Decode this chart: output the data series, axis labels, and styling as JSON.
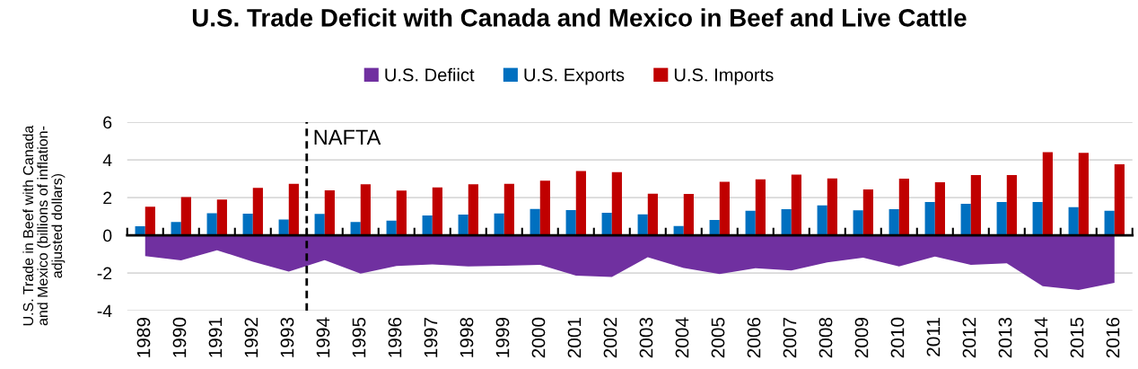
{
  "chart_data": {
    "type": "bar",
    "title": "U.S. Trade Deficit with Canada and Mexico in Beef and Live Cattle",
    "ylabel": "U.S. Trade in Beef with Canada\nand Mexico (billions of inflation-\nadjusted dollars)",
    "x": [
      1989,
      1990,
      1991,
      1992,
      1993,
      1994,
      1995,
      1996,
      1997,
      1998,
      1999,
      2000,
      2001,
      2002,
      2003,
      2004,
      2005,
      2006,
      2007,
      2008,
      2009,
      2010,
      2011,
      2012,
      2013,
      2014,
      2015,
      2016
    ],
    "series": [
      {
        "name": "U.S. Defiict",
        "type": "area",
        "color": "#7030a0",
        "values": [
          -1.11,
          -1.33,
          -0.79,
          -1.4,
          -1.92,
          -1.32,
          -2.03,
          -1.63,
          -1.54,
          -1.65,
          -1.62,
          -1.57,
          -2.14,
          -2.21,
          -1.16,
          -1.73,
          -2.06,
          -1.75,
          -1.87,
          -1.44,
          -1.19,
          -1.65,
          -1.13,
          -1.57,
          -1.49,
          -2.7,
          -2.9,
          -2.52
        ]
      },
      {
        "name": "U.S. Exports",
        "color": "#0070c0",
        "values": [
          0.48,
          0.71,
          1.17,
          1.14,
          0.84,
          1.13,
          0.71,
          0.78,
          1.05,
          1.1,
          1.16,
          1.4,
          1.33,
          1.19,
          1.11,
          0.49,
          0.81,
          1.3,
          1.38,
          1.59,
          1.32,
          1.38,
          1.76,
          1.67,
          1.76,
          1.76,
          1.49,
          1.3
        ]
      },
      {
        "name": "U.S. Imports",
        "color": "#c00000",
        "values": [
          1.52,
          2.03,
          1.9,
          2.52,
          2.73,
          2.38,
          2.71,
          2.37,
          2.54,
          2.7,
          2.73,
          2.9,
          3.41,
          3.35,
          2.21,
          2.19,
          2.83,
          2.97,
          3.22,
          3.02,
          2.43,
          3.0,
          2.81,
          3.19,
          3.19,
          4.41,
          4.37,
          3.76
        ]
      }
    ],
    "xlim": [
      1988.5,
      2016.5
    ],
    "xticks": [
      {
        "value": 1988.5,
        "label": null
      },
      1989,
      {
        "value": 1989.5,
        "label": null
      },
      1990,
      {
        "value": 1990.5,
        "label": null
      },
      1991,
      {
        "value": 1991.5,
        "label": null
      },
      1992,
      {
        "value": 1992.5,
        "label": null
      },
      1993,
      {
        "value": 1993.5,
        "label": null
      },
      1994,
      {
        "value": 1994.5,
        "label": null
      },
      1995,
      {
        "value": 1995.5,
        "label": null
      },
      1996,
      {
        "value": 1996.5,
        "label": null
      },
      1997,
      {
        "value": 1997.5,
        "label": null
      },
      1998,
      {
        "value": 1998.5,
        "label": null
      },
      1999,
      {
        "value": 1999.5,
        "label": null
      },
      2000,
      {
        "value": 2000.5,
        "label": null
      },
      2001,
      {
        "value": 2001.5,
        "label": null
      },
      2002,
      {
        "value": 2002.5,
        "label": null
      },
      2003,
      {
        "value": 2003.5,
        "label": null
      },
      2004,
      {
        "value": 2004.5,
        "label": null
      },
      2005,
      {
        "value": 2005.5,
        "label": null
      },
      2006,
      {
        "value": 2006.5,
        "label": null
      },
      2007,
      {
        "value": 2007.5,
        "label": null
      },
      2008,
      {
        "value": 2008.5,
        "label": null
      },
      2009,
      {
        "value": 2009.5,
        "label": null
      },
      2010,
      {
        "value": 2010.5,
        "label": null
      },
      2011,
      {
        "value": 2011.5,
        "label": null
      },
      2012,
      {
        "value": 2012.5,
        "label": null
      },
      2013,
      {
        "value": 2013.5,
        "label": null
      },
      2014,
      {
        "value": 2014.5,
        "label": null
      },
      2015,
      {
        "value": 2015.5,
        "label": null
      },
      2016,
      {
        "value": 2016.5,
        "label": null
      }
    ],
    "ylim": [
      -4,
      6
    ],
    "yticks": [
      -4,
      -2,
      0,
      2,
      4,
      6
    ],
    "ref_lines": [
      {
        "axis": "x",
        "value": 1993.5,
        "label": "NAFTA",
        "color": "#000000",
        "line_style": "dashed"
      }
    ],
    "grid": "y",
    "legend": "top"
  }
}
